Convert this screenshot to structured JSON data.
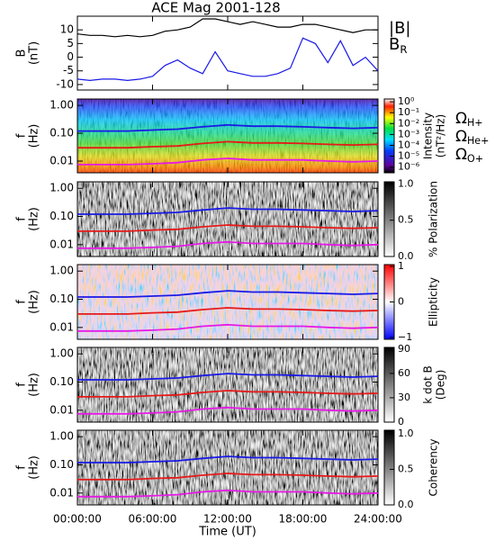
{
  "title": "ACE Mag 2001-128",
  "x_label": "Time (UT)",
  "xlim": [
    0,
    24
  ],
  "xticks": [
    {
      "value": 0,
      "label": "00:00:00"
    },
    {
      "value": 6,
      "label": "06:00:00"
    },
    {
      "value": 12,
      "label": "12:00:00"
    },
    {
      "value": 18,
      "label": "18:00:00"
    },
    {
      "value": 24,
      "label": "24:00:00"
    }
  ],
  "chart_data": [
    {
      "type": "line",
      "y_label": "B",
      "y_unit": "(nT)",
      "ylim": [
        -12,
        15
      ],
      "yticks": [
        -10,
        -5,
        0,
        5,
        10
      ],
      "x": [
        0,
        1,
        2,
        3,
        4,
        5,
        6,
        7,
        8,
        9,
        10,
        11,
        12,
        13,
        14,
        15,
        16,
        17,
        18,
        19,
        20,
        21,
        22,
        23,
        24
      ],
      "series": [
        {
          "name": "|B|",
          "color": "#000000",
          "values": [
            8.5,
            8,
            8,
            7.5,
            8,
            7.5,
            8,
            9.5,
            10,
            11,
            14,
            14,
            13,
            12,
            13,
            12,
            11,
            11,
            12,
            12,
            11,
            10,
            9,
            10,
            10
          ]
        },
        {
          "name": "BR",
          "color": "#1a1ae6",
          "values": [
            -8,
            -8.5,
            -8,
            -8,
            -8.5,
            -8,
            -7,
            -3,
            -1,
            -4,
            -6,
            2,
            -5,
            -6,
            -7,
            -7,
            -6,
            -4,
            7,
            5,
            -2,
            6,
            -3,
            0,
            -5
          ]
        }
      ]
    },
    {
      "type": "spectrogram",
      "y_label": "f",
      "y_unit": "(Hz)",
      "log_y": true,
      "ylim": [
        0.0038,
        1.7
      ],
      "yticks": [
        {
          "value": 1,
          "label": "1.00"
        },
        {
          "value": 0.1,
          "label": "0.10"
        },
        {
          "value": 0.01,
          "label": "0.01"
        }
      ],
      "colorbar": {
        "label": "Intensity",
        "unit": "(nT²/Hz)",
        "colormap": "rainbow",
        "log": true,
        "zlim": [
          3e-07,
          1.8
        ],
        "ticks": [
          {
            "value": 1,
            "label": "10⁰"
          },
          {
            "value": 0.1,
            "label": "10⁻¹"
          },
          {
            "value": 0.01,
            "label": "10⁻²"
          },
          {
            "value": 0.001,
            "label": "10⁻³"
          },
          {
            "value": 0.0001,
            "label": "10⁻⁴"
          },
          {
            "value": 1e-05,
            "label": "10⁻⁵"
          },
          {
            "value": 1e-06,
            "label": "10⁻⁶"
          }
        ]
      },
      "x": [
        0,
        2,
        4,
        6,
        8,
        10,
        12,
        14,
        16,
        18,
        20,
        22,
        24
      ],
      "series": [
        {
          "name": "ΩH+",
          "color": "#1a1ae6",
          "values": [
            0.12,
            0.12,
            0.12,
            0.13,
            0.14,
            0.17,
            0.2,
            0.18,
            0.18,
            0.17,
            0.16,
            0.15,
            0.16
          ]
        },
        {
          "name": "ΩHe+",
          "color": "#e61a1a",
          "values": [
            0.03,
            0.03,
            0.03,
            0.033,
            0.035,
            0.043,
            0.05,
            0.045,
            0.045,
            0.043,
            0.04,
            0.038,
            0.04
          ]
        },
        {
          "name": "ΩO+",
          "color": "#e61ae6",
          "values": [
            0.0075,
            0.0075,
            0.0075,
            0.008,
            0.0088,
            0.011,
            0.0125,
            0.011,
            0.011,
            0.011,
            0.01,
            0.0094,
            0.01
          ]
        }
      ]
    },
    {
      "type": "spectrogram",
      "y_label": "f",
      "y_unit": "(Hz)",
      "log_y": true,
      "ylim": [
        0.0038,
        1.7
      ],
      "yticks": [
        {
          "value": 1,
          "label": "1.00"
        },
        {
          "value": 0.1,
          "label": "0.10"
        },
        {
          "value": 0.01,
          "label": "0.01"
        }
      ],
      "colorbar": {
        "label": "% Polarization",
        "colormap": "gray",
        "log": false,
        "zlim": [
          0,
          1.03
        ],
        "ticks": [
          {
            "value": 0,
            "label": "0.0"
          },
          0.5,
          {
            "value": 1,
            "label": "1.0"
          }
        ]
      },
      "x": [
        0,
        2,
        4,
        6,
        8,
        10,
        12,
        14,
        16,
        18,
        20,
        22,
        24
      ],
      "series": [
        {
          "color": "#1a1ae6",
          "values": [
            0.12,
            0.12,
            0.12,
            0.13,
            0.14,
            0.17,
            0.2,
            0.18,
            0.18,
            0.17,
            0.16,
            0.15,
            0.16
          ]
        },
        {
          "color": "#e61a1a",
          "values": [
            0.03,
            0.03,
            0.03,
            0.033,
            0.035,
            0.043,
            0.05,
            0.045,
            0.045,
            0.043,
            0.04,
            0.038,
            0.04
          ]
        },
        {
          "color": "#e61ae6",
          "values": [
            0.0075,
            0.0075,
            0.0075,
            0.008,
            0.0088,
            0.011,
            0.0125,
            0.011,
            0.011,
            0.011,
            0.01,
            0.0094,
            0.01
          ]
        }
      ]
    },
    {
      "type": "spectrogram",
      "y_label": "f",
      "y_unit": "(Hz)",
      "log_y": true,
      "ylim": [
        0.0038,
        1.7
      ],
      "yticks": [
        {
          "value": 1,
          "label": "1.00"
        },
        {
          "value": 0.1,
          "label": "0.10"
        },
        {
          "value": 0.01,
          "label": "0.01"
        }
      ],
      "colorbar": {
        "label": "Ellipticity",
        "colormap": "bwr",
        "log": false,
        "zlim": [
          -1.05,
          1.05
        ],
        "ticks": [
          1,
          0,
          {
            "value": -1,
            "label": "−1"
          }
        ]
      },
      "x": [
        0,
        2,
        4,
        6,
        8,
        10,
        12,
        14,
        16,
        18,
        20,
        22,
        24
      ],
      "series": [
        {
          "color": "#1a1ae6",
          "values": [
            0.12,
            0.12,
            0.12,
            0.13,
            0.14,
            0.17,
            0.2,
            0.18,
            0.18,
            0.17,
            0.16,
            0.15,
            0.16
          ]
        },
        {
          "color": "#e61a1a",
          "values": [
            0.03,
            0.03,
            0.03,
            0.033,
            0.035,
            0.043,
            0.05,
            0.045,
            0.045,
            0.043,
            0.04,
            0.038,
            0.04
          ]
        },
        {
          "color": "#e61ae6",
          "values": [
            0.0075,
            0.0075,
            0.0075,
            0.008,
            0.0088,
            0.011,
            0.0125,
            0.011,
            0.011,
            0.011,
            0.01,
            0.0094,
            0.01
          ]
        }
      ]
    },
    {
      "type": "spectrogram",
      "y_label": "f",
      "y_unit": "(Hz)",
      "log_y": true,
      "ylim": [
        0.0038,
        1.7
      ],
      "yticks": [
        {
          "value": 1,
          "label": "1.00"
        },
        {
          "value": 0.1,
          "label": "0.10"
        },
        {
          "value": 0.01,
          "label": "0.01"
        }
      ],
      "colorbar": {
        "label": "k dot B",
        "unit": "(Deg)",
        "colormap": "gray",
        "log": false,
        "zlim": [
          0,
          92
        ],
        "ticks": [
          90,
          60,
          30,
          0
        ]
      },
      "x": [
        0,
        2,
        4,
        6,
        8,
        10,
        12,
        14,
        16,
        18,
        20,
        22,
        24
      ],
      "series": [
        {
          "color": "#1a1ae6",
          "values": [
            0.12,
            0.12,
            0.12,
            0.13,
            0.14,
            0.17,
            0.2,
            0.18,
            0.18,
            0.17,
            0.16,
            0.15,
            0.16
          ]
        },
        {
          "color": "#e61a1a",
          "values": [
            0.03,
            0.03,
            0.03,
            0.033,
            0.035,
            0.043,
            0.05,
            0.045,
            0.045,
            0.043,
            0.04,
            0.038,
            0.04
          ]
        },
        {
          "color": "#e61ae6",
          "values": [
            0.0075,
            0.0075,
            0.0075,
            0.008,
            0.0088,
            0.011,
            0.0125,
            0.011,
            0.011,
            0.011,
            0.01,
            0.0094,
            0.01
          ]
        }
      ]
    },
    {
      "type": "spectrogram",
      "y_label": "f",
      "y_unit": "(Hz)",
      "log_y": true,
      "ylim": [
        0.0038,
        1.7
      ],
      "yticks": [
        {
          "value": 1,
          "label": "1.00"
        },
        {
          "value": 0.1,
          "label": "0.10"
        },
        {
          "value": 0.01,
          "label": "0.01"
        }
      ],
      "colorbar": {
        "label": "Coherency",
        "colormap": "gray",
        "log": false,
        "zlim": [
          0,
          1.05
        ],
        "ticks": [
          {
            "value": 1,
            "label": "1.0"
          },
          0.5,
          {
            "value": 0,
            "label": "0.0"
          }
        ]
      },
      "x": [
        0,
        2,
        4,
        6,
        8,
        10,
        12,
        14,
        16,
        18,
        20,
        22,
        24
      ],
      "series": [
        {
          "color": "#1a1ae6",
          "values": [
            0.12,
            0.12,
            0.12,
            0.13,
            0.14,
            0.17,
            0.2,
            0.18,
            0.18,
            0.17,
            0.16,
            0.15,
            0.16
          ]
        },
        {
          "color": "#e61a1a",
          "values": [
            0.03,
            0.03,
            0.03,
            0.033,
            0.035,
            0.043,
            0.05,
            0.045,
            0.045,
            0.043,
            0.04,
            0.038,
            0.04
          ]
        },
        {
          "color": "#e61ae6",
          "values": [
            0.0075,
            0.0075,
            0.0075,
            0.008,
            0.0088,
            0.011,
            0.0125,
            0.011,
            0.011,
            0.011,
            0.01,
            0.0094,
            0.01
          ]
        }
      ]
    }
  ]
}
